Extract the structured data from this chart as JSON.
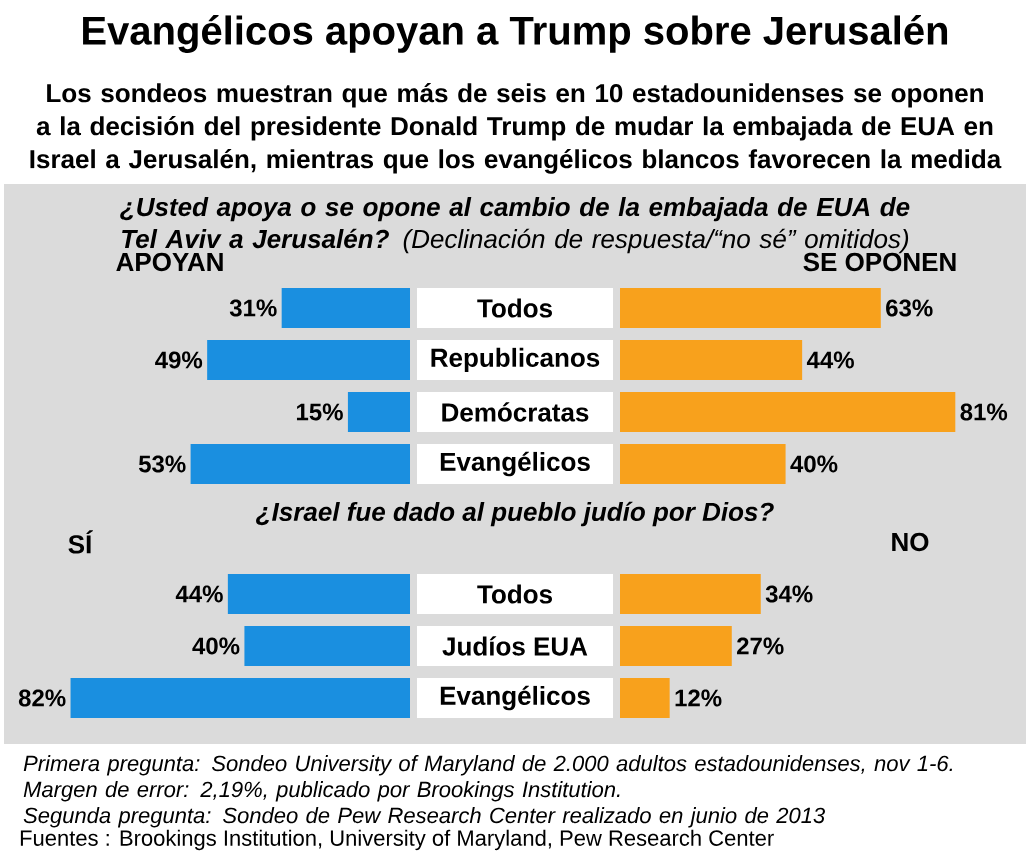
{
  "chart_data": [
    {
      "type": "bar",
      "orientation": "horizontal",
      "title": "Evangélicos apoyan a Trump sobre Jerusalén",
      "subtitle": "Los sondeos muestran que más de seis en 10 estadounidenses se oponen a la decisión del presidente Donald Trump de mudar la embajada de EUA en Israel a Jerusalén, mientras que los evangélicos blancos favorecen la medida",
      "annotations": [
        "¿Usted apoya o se opone al cambio de la embajada de EUA de Tel Aviv a Jerusalén?",
        "(Declinación de respuesta/“no sé” omitidos)"
      ],
      "categories": [
        "Todos",
        "Republicanos",
        "Demócratas",
        "Evangélicos"
      ],
      "series": [
        {
          "name": "APOYAN",
          "color": "#1a8fe0",
          "values": [
            31,
            49,
            15,
            53
          ],
          "value_labels": [
            "31%",
            "49%",
            "15%",
            "53%"
          ]
        }
      ]
    },
    {
      "type": "bar",
      "orientation": "horizontal",
      "categories": [
        null,
        null,
        null,
        null
      ],
      "series": [
        {
          "name": "SE OPONEN",
          "color": "#f8a11c",
          "values": [
            63,
            44,
            81,
            40
          ],
          "value_labels": [
            "63%",
            "44%",
            "81%",
            "40%"
          ]
        }
      ]
    },
    {
      "type": "bar",
      "orientation": "horizontal",
      "annotations": [
        "¿Israel fue dado al pueblo judío por Dios?"
      ],
      "categories": [
        "Todos",
        "Judíos EUA",
        "Evangélicos"
      ],
      "series": [
        {
          "name": "SÍ",
          "color": "#1a8fe0",
          "values": [
            44,
            40,
            82
          ],
          "value_labels": [
            "44%",
            "40%",
            "82%"
          ]
        }
      ]
    },
    {
      "type": "bar",
      "orientation": "horizontal",
      "annotations": [
        "Primera pregunta: Sondeo University of Maryland de 2.000 adultos estadounidenses, nov 1-6. Margen de error: 2,19%, publicado por Brookings Institution.",
        "Segunda pregunta: Sondeo de Pew Research Center realizado en junio de 2013",
        "Fuentes : Brookings Institution, University of Maryland, Pew Research Center"
      ],
      "categories": [
        null,
        null,
        null
      ],
      "series": [
        {
          "name": "NO",
          "color": "#f8a11c",
          "values": [
            34,
            27,
            12
          ],
          "value_labels": [
            "34%",
            "27%",
            "12%"
          ]
        }
      ]
    }
  ]
}
